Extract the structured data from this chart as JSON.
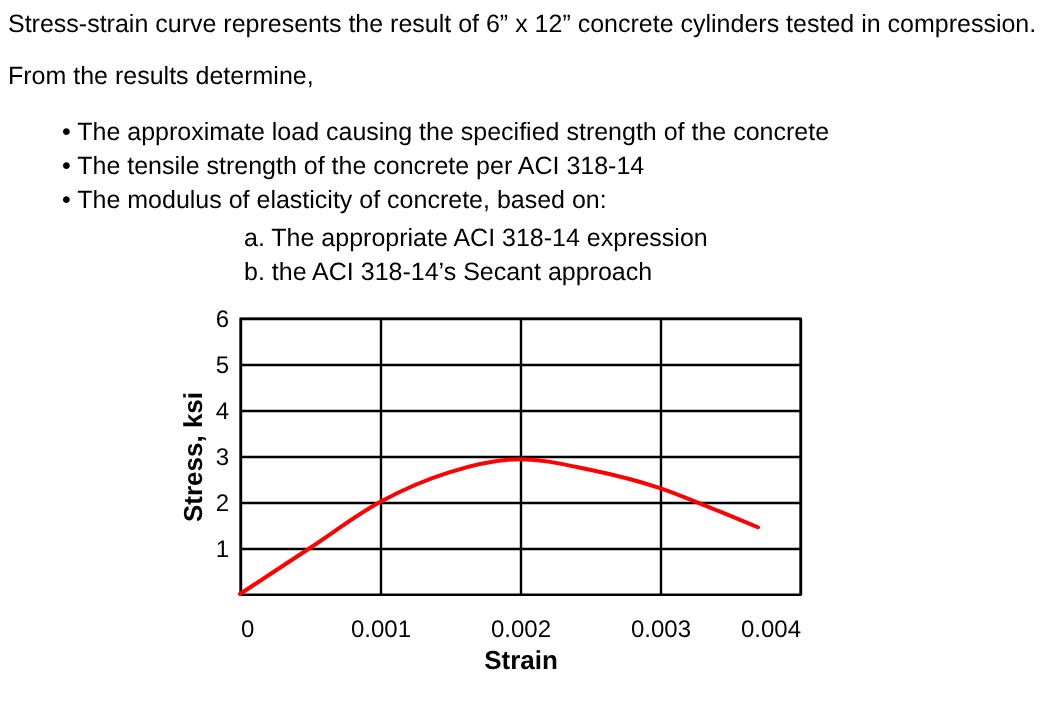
{
  "chart_data": {
    "type": "line",
    "annotations": [
      "Stress-strain curve represents the result of 6” x 12” concrete cylinders tested in compression.",
      "From the results determine,",
      "•      The approximate load causing the specified strength of the concrete",
      "•      The tensile strength of the concrete per ACI 318-14",
      "•      The modulus of elasticity of concrete, based on:",
      "a. The appropriate ACI 318-14 expression",
      "b. the ACI 318-14’s Secant approach"
    ],
    "xlabel": "Strain",
    "ylabel": "Stress, ksi",
    "series": [
      {
        "color": "#ff0000",
        "x": [
          0,
          0.0005,
          0.001,
          0.0015,
          0.002,
          0.0025,
          0.003,
          0.0033,
          0.0037
        ],
        "values": [
          0,
          1.0,
          2.0,
          2.65,
          2.93,
          2.7,
          2.3,
          1.95,
          1.45
        ]
      }
    ],
    "xlim": [
      0,
      0.004
    ],
    "xticks": [
      0,
      0.001,
      0.002,
      0.003,
      0.004
    ],
    "ylim": [
      0,
      6
    ],
    "yticks": [
      1,
      2,
      3,
      4,
      5,
      6
    ],
    "grid": true,
    "marker": "none",
    "line_style": "solid"
  }
}
